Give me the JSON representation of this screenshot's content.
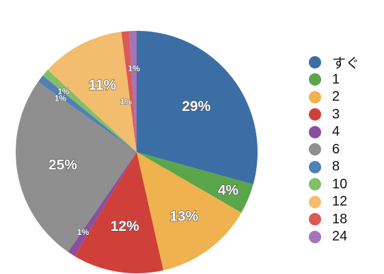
{
  "chart_data": {
    "type": "pie",
    "title": "",
    "legend_position": "right",
    "start_angle": "12 o'clock",
    "direction": "clockwise",
    "categories": [
      "すぐ",
      "1",
      "2",
      "3",
      "4",
      "6",
      "8",
      "10",
      "12",
      "18",
      "24"
    ],
    "values": [
      29,
      4,
      13,
      12,
      1,
      25,
      1,
      1,
      11,
      1,
      1
    ],
    "labels": [
      "29%",
      "4%",
      "13%",
      "12%",
      "1%",
      "25%",
      "1%",
      "1%",
      "11%",
      "1%",
      "1%"
    ],
    "colors": [
      "#3b6ea5",
      "#5ba64b",
      "#f0b14f",
      "#d0403a",
      "#8b4f9e",
      "#8f8f8f",
      "#4f80b8",
      "#82bf66",
      "#f2bd6e",
      "#dc5a56",
      "#a574b8"
    ]
  }
}
